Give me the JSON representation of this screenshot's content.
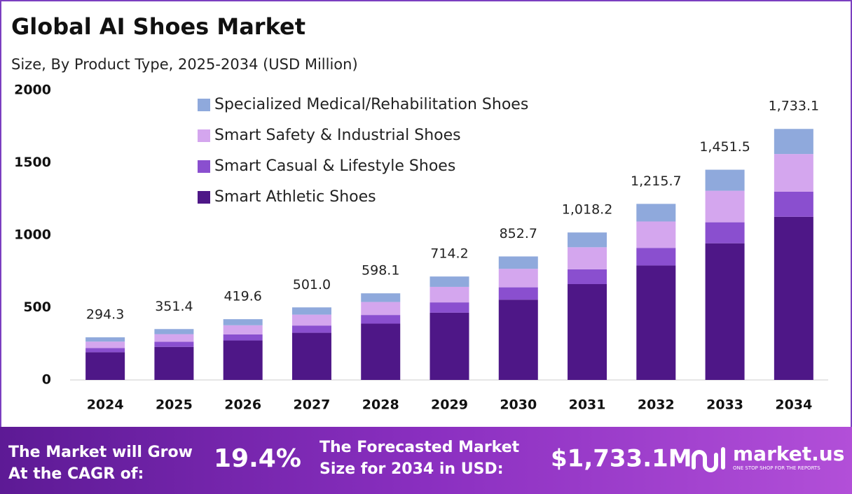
{
  "chart_data": {
    "type": "stacked-bar",
    "title": "Global AI Shoes Market",
    "subtitle": "Size, By Product Type, 2025-2034 (USD Million)",
    "categories": [
      "2024",
      "2025",
      "2026",
      "2027",
      "2028",
      "2029",
      "2030",
      "2031",
      "2032",
      "2033",
      "2034"
    ],
    "series": [
      {
        "name": "Smart Athletic Shoes",
        "color": "#4e1787",
        "values": [
          191.3,
          228.4,
          272.7,
          325.7,
          388.8,
          464.2,
          554.3,
          661.8,
          790.2,
          943.5,
          1126.5
        ]
      },
      {
        "name": "Smart Casual & Lifestyle Shoes",
        "color": "#8a4fcf",
        "values": [
          29.4,
          35.1,
          42.0,
          50.1,
          59.8,
          71.4,
          85.3,
          101.8,
          121.6,
          145.2,
          173.3
        ]
      },
      {
        "name": "Smart Safety & Industrial Shoes",
        "color": "#d4a6ee",
        "values": [
          44.1,
          52.7,
          62.9,
          75.2,
          89.7,
          107.1,
          127.9,
          152.7,
          182.4,
          217.7,
          260.0
        ]
      },
      {
        "name": "Specialized Medical/Rehabilitation Shoes",
        "color": "#8fa9dc",
        "values": [
          29.5,
          35.2,
          42.0,
          50.0,
          59.8,
          71.5,
          85.2,
          101.9,
          121.5,
          145.1,
          173.3
        ]
      }
    ],
    "totals": [
      294.3,
      351.4,
      419.6,
      501.0,
      598.1,
      714.2,
      852.7,
      1018.2,
      1215.7,
      1451.5,
      1733.1
    ],
    "total_labels": [
      "294.3",
      "351.4",
      "419.6",
      "501.0",
      "598.1",
      "714.2",
      "852.7",
      "1,018.2",
      "1,215.7",
      "1,451.5",
      "1,733.1"
    ],
    "ylim": [
      0,
      2000
    ],
    "yticks": [
      0,
      500,
      1000,
      1500,
      2000
    ],
    "grid": false,
    "legend": "top"
  },
  "footer": {
    "cagr_label": [
      "The Market will Grow",
      "At the CAGR of:"
    ],
    "cagr_value": "19.4%",
    "size_label": [
      "The Forecasted Market",
      "Size for 2034 in USD:"
    ],
    "size_value": "$1,733.1M",
    "brand": "market.us",
    "tagline": "ONE STOP SHOP FOR THE REPORTS"
  }
}
